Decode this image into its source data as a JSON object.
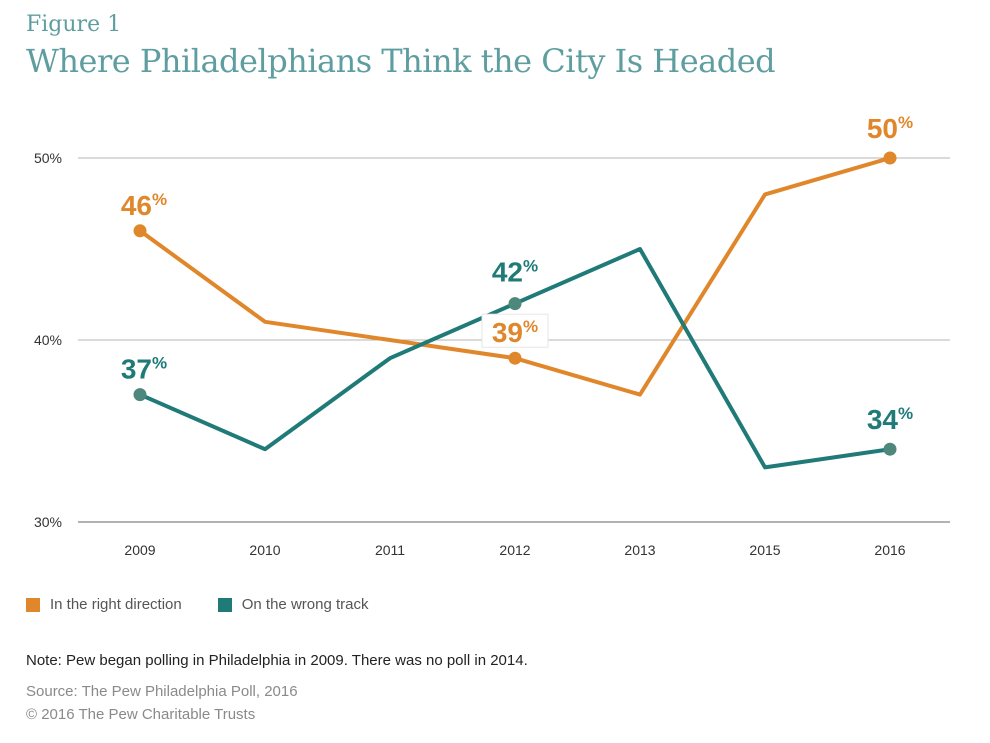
{
  "figure_label": "Figure 1",
  "chart_data": {
    "type": "line",
    "title": "Where Philadelphians Think the City Is Headed",
    "categories": [
      "2009",
      "2010",
      "2011",
      "2012",
      "2013",
      "2015",
      "2016"
    ],
    "ylim": [
      30,
      50
    ],
    "yticks": [
      30,
      40,
      50
    ],
    "ytick_labels": [
      "30%",
      "40%",
      "50%"
    ],
    "grid": true,
    "series": [
      {
        "name": "In the right direction",
        "color": "#e0872b",
        "values": [
          46,
          41,
          40,
          39,
          37,
          48,
          50
        ],
        "labeled_points": [
          {
            "index": 0,
            "num": "46",
            "suffix": "%"
          },
          {
            "index": 3,
            "num": "39",
            "suffix": "%"
          },
          {
            "index": 6,
            "num": "50",
            "suffix": "%"
          }
        ]
      },
      {
        "name": "On the wrong track",
        "color": "#1f7a78",
        "marker_color": "#4e877b",
        "values": [
          37,
          34,
          39,
          42,
          45,
          33,
          34
        ],
        "labeled_points": [
          {
            "index": 0,
            "num": "37",
            "suffix": "%"
          },
          {
            "index": 3,
            "num": "42",
            "suffix": "%"
          },
          {
            "index": 6,
            "num": "34",
            "suffix": "%"
          }
        ]
      }
    ]
  },
  "legend": {
    "items": [
      {
        "label": "In the right direction",
        "color": "#e0872b"
      },
      {
        "label": "On the wrong track",
        "color": "#1f7a78"
      }
    ]
  },
  "note": "Note: Pew began polling in Philadelphia in 2009. There was no poll in 2014.",
  "source": "Source: The Pew Philadelphia Poll, 2016",
  "copyright": "© 2016 The Pew Charitable Trusts"
}
